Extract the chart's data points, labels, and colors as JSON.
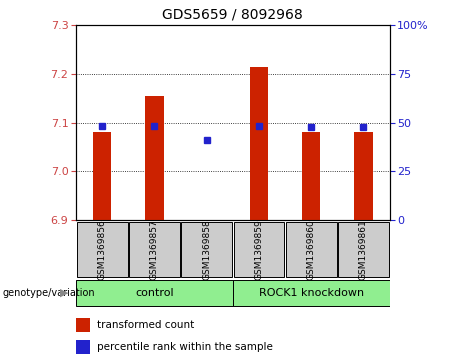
{
  "title": "GDS5659 / 8092968",
  "samples": [
    "GSM1369856",
    "GSM1369857",
    "GSM1369858",
    "GSM1369859",
    "GSM1369860",
    "GSM1369861"
  ],
  "bar_values": [
    7.08,
    7.155,
    6.895,
    7.215,
    7.08,
    7.08
  ],
  "percentile_values": [
    7.093,
    7.093,
    7.065,
    7.093,
    7.09,
    7.091
  ],
  "bar_color": "#cc2200",
  "dot_color": "#2222cc",
  "ylim_left": [
    6.9,
    7.3
  ],
  "ylim_right": [
    0,
    100
  ],
  "yticks_left": [
    6.9,
    7.0,
    7.1,
    7.2,
    7.3
  ],
  "yticks_right": [
    0,
    25,
    50,
    75,
    100
  ],
  "right_tick_labels": [
    "0",
    "25",
    "50",
    "75",
    "100%"
  ],
  "groups": [
    {
      "label": "control",
      "indices": [
        0,
        1,
        2
      ],
      "color": "#90ee90"
    },
    {
      "label": "ROCK1 knockdown",
      "indices": [
        3,
        4,
        5
      ],
      "color": "#90ee90"
    }
  ],
  "group_label_prefix": "genotype/variation",
  "legend_items": [
    {
      "color": "#cc2200",
      "label": "transformed count"
    },
    {
      "color": "#2222cc",
      "label": "percentile rank within the sample"
    }
  ],
  "bar_width": 0.35,
  "background_color": "#ffffff",
  "plot_bg_color": "#ffffff",
  "grid_color": "#000000",
  "tick_label_color_left": "#cc4444",
  "tick_label_color_right": "#2222cc",
  "sample_box_color": "#cccccc",
  "base_value": 6.9,
  "gridlines_at": [
    7.0,
    7.1,
    7.2
  ]
}
